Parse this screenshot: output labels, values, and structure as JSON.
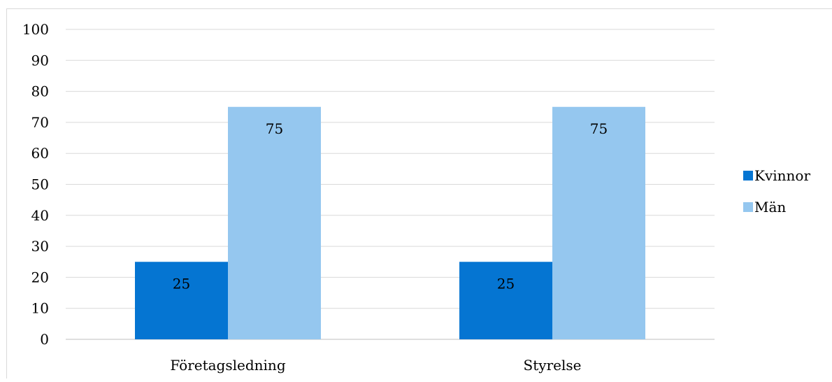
{
  "caption_fragment": "",
  "chart_data": {
    "type": "bar",
    "title": "",
    "xlabel": "",
    "ylabel": "",
    "categories": [
      "Företagsledning",
      "Styrelse"
    ],
    "series": [
      {
        "name": "Kvinnor",
        "values": [
          25,
          25
        ],
        "color": "#0575d2"
      },
      {
        "name": "Män",
        "values": [
          75,
          75
        ],
        "color": "#95c7ef"
      }
    ],
    "ylim": [
      0,
      100
    ],
    "yticks": [
      "0",
      "10",
      "20",
      "30",
      "40",
      "50",
      "60",
      "70",
      "80",
      "90",
      "100"
    ],
    "data_labels": true,
    "grid": true,
    "legend_position": "right"
  }
}
